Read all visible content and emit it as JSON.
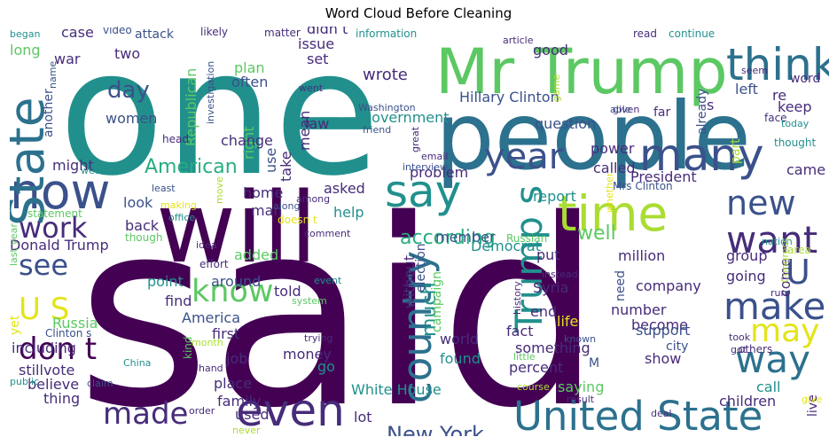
{
  "title": "Word Cloud Before Cleaning",
  "palette": {
    "dark": "#440154",
    "purple": "#472c7a",
    "indigo": "#3b518b",
    "blue": "#2c718e",
    "teal": "#21908d",
    "green": "#27ad81",
    "lime": "#5cc863",
    "yellowgreen": "#aadc32",
    "yellow": "#e3e418"
  },
  "words": [
    {
      "text": "said",
      "color": "#440154"
    },
    {
      "text": "one",
      "color": "#21908d"
    },
    {
      "text": "people",
      "color": "#2c718e"
    },
    {
      "text": "will",
      "color": "#440154"
    },
    {
      "text": "Mr Trump",
      "color": "#5cc863"
    },
    {
      "text": "now",
      "color": "#3b518b"
    },
    {
      "text": "time",
      "color": "#aadc32"
    },
    {
      "text": "think",
      "color": "#2c718e"
    },
    {
      "text": "say",
      "color": "#21908d"
    },
    {
      "text": "State",
      "color": "#2c718e"
    },
    {
      "text": "even",
      "color": "#472c7a"
    },
    {
      "text": "United State",
      "color": "#2c718e"
    },
    {
      "text": "many",
      "color": "#3b518b"
    },
    {
      "text": "year",
      "color": "#3b518b"
    },
    {
      "text": "Trump s",
      "color": "#21908d"
    },
    {
      "text": "country",
      "color": "#2c718e"
    },
    {
      "text": "make",
      "color": "#3b518b"
    },
    {
      "text": "way",
      "color": "#2c718e"
    },
    {
      "text": "new",
      "color": "#3b518b"
    },
    {
      "text": "want",
      "color": "#472c7a"
    },
    {
      "text": "U",
      "color": "#3b518b"
    },
    {
      "text": "may",
      "color": "#e3e418"
    },
    {
      "text": "work",
      "color": "#472c7a"
    },
    {
      "text": "know",
      "color": "#5cc863"
    },
    {
      "text": "made",
      "color": "#472c7a"
    },
    {
      "text": "don t",
      "color": "#440154"
    },
    {
      "text": "see",
      "color": "#3b518b"
    },
    {
      "text": "U S",
      "color": "#e3e418"
    },
    {
      "text": "day",
      "color": "#3b518b"
    },
    {
      "text": "American",
      "color": "#27ad81"
    },
    {
      "text": "according",
      "color": "#27ad81"
    },
    {
      "text": "New York",
      "color": "#3b518b"
    },
    {
      "text": "much",
      "color": "#21908d"
    },
    {
      "text": "well",
      "color": "#5cc863"
    },
    {
      "text": "Hillary Clinton",
      "color": "#3b518b"
    },
    {
      "text": "wrote",
      "color": "#472c7a"
    },
    {
      "text": "government",
      "color": "#21908d"
    },
    {
      "text": "Washington",
      "color": "#3b518b"
    },
    {
      "text": "question",
      "color": "#3b518b"
    },
    {
      "text": "good",
      "color": "#472c7a"
    },
    {
      "text": "issue",
      "color": "#472c7a"
    },
    {
      "text": "didn t",
      "color": "#472c7a"
    },
    {
      "text": "set",
      "color": "#472c7a"
    },
    {
      "text": "law",
      "color": "#472c7a"
    },
    {
      "text": "plan",
      "color": "#5cc863"
    },
    {
      "text": "often",
      "color": "#3b518b"
    },
    {
      "text": "right",
      "color": "#5cc863"
    },
    {
      "text": "two",
      "color": "#472c7a"
    },
    {
      "text": "women",
      "color": "#3b518b"
    },
    {
      "text": "Republican",
      "color": "#5cc863"
    },
    {
      "text": "change",
      "color": "#472c7a"
    },
    {
      "text": "attack",
      "color": "#3b518b"
    },
    {
      "text": "case",
      "color": "#472c7a"
    },
    {
      "text": "war",
      "color": "#472c7a"
    },
    {
      "text": "long",
      "color": "#5cc863"
    },
    {
      "text": "another",
      "color": "#3b518b"
    },
    {
      "text": "might",
      "color": "#472c7a"
    },
    {
      "text": "Donald Trump",
      "color": "#472c7a"
    },
    {
      "text": "statement",
      "color": "#5cc863"
    },
    {
      "text": "look",
      "color": "#3b518b"
    },
    {
      "text": "back",
      "color": "#472c7a"
    },
    {
      "text": "though",
      "color": "#5cc863"
    },
    {
      "text": "home",
      "color": "#472c7a"
    },
    {
      "text": "man",
      "color": "#472c7a"
    },
    {
      "text": "asked",
      "color": "#472c7a"
    },
    {
      "text": "help",
      "color": "#21908d"
    },
    {
      "text": "added",
      "color": "#5cc863"
    },
    {
      "text": "around",
      "color": "#3b518b"
    },
    {
      "text": "point",
      "color": "#21908d"
    },
    {
      "text": "find",
      "color": "#472c7a"
    },
    {
      "text": "told",
      "color": "#472c7a"
    },
    {
      "text": "America",
      "color": "#3b518b"
    },
    {
      "text": "first",
      "color": "#472c7a"
    },
    {
      "text": "job",
      "color": "#472c7a"
    },
    {
      "text": "money",
      "color": "#472c7a"
    },
    {
      "text": "go",
      "color": "#21908d"
    },
    {
      "text": "place",
      "color": "#472c7a"
    },
    {
      "text": "family",
      "color": "#472c7a"
    },
    {
      "text": "used",
      "color": "#472c7a"
    },
    {
      "text": "White House",
      "color": "#21908d"
    },
    {
      "text": "lot",
      "color": "#472c7a"
    },
    {
      "text": "thing",
      "color": "#472c7a"
    },
    {
      "text": "believe",
      "color": "#472c7a"
    },
    {
      "text": "stillvote",
      "color": "#472c7a"
    },
    {
      "text": "including",
      "color": "#472c7a"
    },
    {
      "text": "Russia",
      "color": "#5cc863"
    },
    {
      "text": "Clinton s",
      "color": "#3b518b"
    },
    {
      "text": "yet",
      "color": "#e3e418"
    },
    {
      "text": "campaign",
      "color": "#5cc863"
    },
    {
      "text": "election",
      "color": "#3b518b"
    },
    {
      "text": "without",
      "color": "#472c7a"
    },
    {
      "text": "world",
      "color": "#472c7a"
    },
    {
      "text": "found",
      "color": "#21908d"
    },
    {
      "text": "something",
      "color": "#472c7a"
    },
    {
      "text": "fact",
      "color": "#472c7a"
    },
    {
      "text": "percent",
      "color": "#472c7a"
    },
    {
      "text": "saying",
      "color": "#5cc863"
    },
    {
      "text": "end",
      "color": "#472c7a"
    },
    {
      "text": "life",
      "color": "#e3e418"
    },
    {
      "text": "Syria",
      "color": "#472c7a"
    },
    {
      "text": "put",
      "color": "#472c7a"
    },
    {
      "text": "member",
      "color": "#3b518b"
    },
    {
      "text": "problem",
      "color": "#472c7a"
    },
    {
      "text": "report",
      "color": "#21908d"
    },
    {
      "text": "Democrat",
      "color": "#21908d"
    },
    {
      "text": "million",
      "color": "#472c7a"
    },
    {
      "text": "called",
      "color": "#472c7a"
    },
    {
      "text": "power",
      "color": "#472c7a"
    },
    {
      "text": "President",
      "color": "#472c7a"
    },
    {
      "text": "Mrs Clinton",
      "color": "#3b518b"
    },
    {
      "text": "company",
      "color": "#472c7a"
    },
    {
      "text": "number",
      "color": "#472c7a"
    },
    {
      "text": "become",
      "color": "#472c7a"
    },
    {
      "text": "support",
      "color": "#3b518b"
    },
    {
      "text": "show",
      "color": "#472c7a"
    },
    {
      "text": "city",
      "color": "#3b518b"
    },
    {
      "text": "need",
      "color": "#3b518b"
    },
    {
      "text": "going",
      "color": "#472c7a"
    },
    {
      "text": "group",
      "color": "#472c7a"
    },
    {
      "text": "come",
      "color": "#472c7a"
    },
    {
      "text": "children",
      "color": "#472c7a"
    },
    {
      "text": "call",
      "color": "#21908d"
    },
    {
      "text": "live",
      "color": "#472c7a"
    },
    {
      "text": "part",
      "color": "#aadc32"
    },
    {
      "text": "came",
      "color": "#472c7a"
    },
    {
      "text": "keep",
      "color": "#472c7a"
    },
    {
      "text": "left",
      "color": "#3b518b"
    },
    {
      "text": "re",
      "color": "#472c7a"
    },
    {
      "text": "s",
      "color": "#472c7a"
    },
    {
      "text": "already",
      "color": "#3b518b"
    },
    {
      "text": "far",
      "color": "#472c7a"
    },
    {
      "text": "take",
      "color": "#472c7a"
    },
    {
      "text": "use",
      "color": "#3b518b"
    },
    {
      "text": "mean",
      "color": "#472c7a"
    },
    {
      "text": "M",
      "color": "#3b518b"
    },
    {
      "text": "information",
      "color": "#21908d"
    },
    {
      "text": "matter",
      "color": "#472c7a"
    },
    {
      "text": "likely",
      "color": "#472c7a"
    },
    {
      "text": "video",
      "color": "#3b518b"
    },
    {
      "text": "began",
      "color": "#21908d"
    },
    {
      "text": "name",
      "color": "#3b518b"
    },
    {
      "text": "investigation",
      "color": "#3b518b"
    },
    {
      "text": "head",
      "color": "#472c7a"
    },
    {
      "text": "friend",
      "color": "#3b518b"
    },
    {
      "text": "went",
      "color": "#472c7a"
    },
    {
      "text": "great",
      "color": "#472c7a"
    },
    {
      "text": "email",
      "color": "#472c7a"
    },
    {
      "text": "week",
      "color": "#21908d"
    },
    {
      "text": "least",
      "color": "#3b518b"
    },
    {
      "text": "making",
      "color": "#e3e418"
    },
    {
      "text": "office",
      "color": "#21908d"
    },
    {
      "text": "move",
      "color": "#aadc32"
    },
    {
      "text": "along",
      "color": "#3b518b"
    },
    {
      "text": "among",
      "color": "#472c7a"
    },
    {
      "text": "doesn t",
      "color": "#e3e418"
    },
    {
      "text": "interview",
      "color": "#3b518b"
    },
    {
      "text": "idea",
      "color": "#472c7a"
    },
    {
      "text": "effort",
      "color": "#472c7a"
    },
    {
      "text": "comment",
      "color": "#472c7a"
    },
    {
      "text": "event",
      "color": "#21908d"
    },
    {
      "text": "system",
      "color": "#5cc863"
    },
    {
      "text": "trying",
      "color": "#472c7a"
    },
    {
      "text": "month",
      "color": "#aadc32"
    },
    {
      "text": "hand",
      "color": "#472c7a"
    },
    {
      "text": "China",
      "color": "#21908d"
    },
    {
      "text": "kind",
      "color": "#5cc863"
    },
    {
      "text": "public",
      "color": "#21908d"
    },
    {
      "text": "claim",
      "color": "#3b518b"
    },
    {
      "text": "order",
      "color": "#472c7a"
    },
    {
      "text": "never",
      "color": "#aadc32"
    },
    {
      "text": "last year",
      "color": "#5cc863"
    },
    {
      "text": "Russian",
      "color": "#5cc863"
    },
    {
      "text": "article",
      "color": "#472c7a"
    },
    {
      "text": "game",
      "color": "#aadc32"
    },
    {
      "text": "given",
      "color": "#472c7a"
    },
    {
      "text": "able",
      "color": "#3b518b"
    },
    {
      "text": "whether",
      "color": "#e3e418"
    },
    {
      "text": "instead",
      "color": "#472c7a"
    },
    {
      "text": "history",
      "color": "#472c7a"
    },
    {
      "text": "known",
      "color": "#3b518b"
    },
    {
      "text": "little",
      "color": "#5cc863"
    },
    {
      "text": "course",
      "color": "#aadc32"
    },
    {
      "text": "result",
      "color": "#472c7a"
    },
    {
      "text": "deal",
      "color": "#472c7a"
    },
    {
      "text": "nation",
      "color": "#21908d"
    },
    {
      "text": "Congress",
      "color": "#aadc32"
    },
    {
      "text": "run",
      "color": "#472c7a"
    },
    {
      "text": "area",
      "color": "#aadc32"
    },
    {
      "text": "took",
      "color": "#472c7a"
    },
    {
      "text": "got",
      "color": "#472c7a"
    },
    {
      "text": "others",
      "color": "#472c7a"
    },
    {
      "text": "give",
      "color": "#e3e418"
    },
    {
      "text": "read",
      "color": "#472c7a"
    },
    {
      "text": "continue",
      "color": "#21908d"
    },
    {
      "text": "seem",
      "color": "#472c7a"
    },
    {
      "text": "word",
      "color": "#472c7a"
    },
    {
      "text": "face",
      "color": "#472c7a"
    },
    {
      "text": "today",
      "color": "#21908d"
    },
    {
      "text": "thought",
      "color": "#21908d"
    }
  ]
}
